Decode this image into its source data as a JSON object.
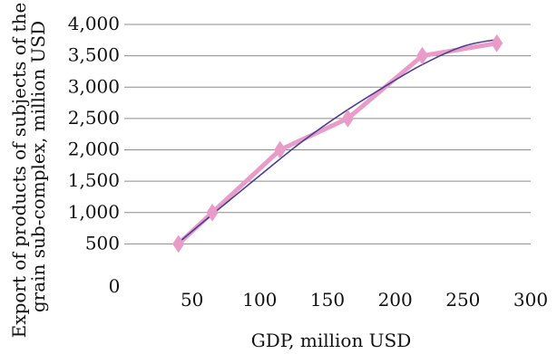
{
  "chart_data": {
    "type": "line",
    "title": "",
    "xlabel": "GDP, million USD",
    "ylabel_lines": [
      "Export of products of subjects of the",
      "grain sub-complex, million USD"
    ],
    "x_ticks": [
      0,
      50,
      100,
      150,
      200,
      250,
      300
    ],
    "x_tick_labels": [
      "0",
      "50",
      "100",
      "150",
      "200",
      "250",
      "300"
    ],
    "y_ticks": [
      500,
      1000,
      1500,
      2000,
      2500,
      3000,
      3500,
      4000
    ],
    "y_tick_labels": [
      "500",
      "1,000",
      "1,500",
      "2,000",
      "2,500",
      "3,000",
      "3,500",
      "4,000"
    ],
    "xlim": [
      0,
      300
    ],
    "ylim": [
      0,
      4000
    ],
    "grid": "horizontal",
    "series": [
      {
        "type": "line",
        "marker": "diamond",
        "color": "#e89cc8",
        "x": [
          40,
          65,
          115,
          165,
          220,
          275
        ],
        "y": [
          500,
          1000,
          2000,
          2500,
          3500,
          3700
        ]
      },
      {
        "type": "trendline",
        "color": "#4b3d8f",
        "x": [
          40,
          70,
          100,
          130,
          160,
          190,
          220,
          250,
          275
        ],
        "y": [
          520,
          1060,
          1590,
          2110,
          2570,
          2980,
          3360,
          3650,
          3760
        ]
      }
    ]
  }
}
